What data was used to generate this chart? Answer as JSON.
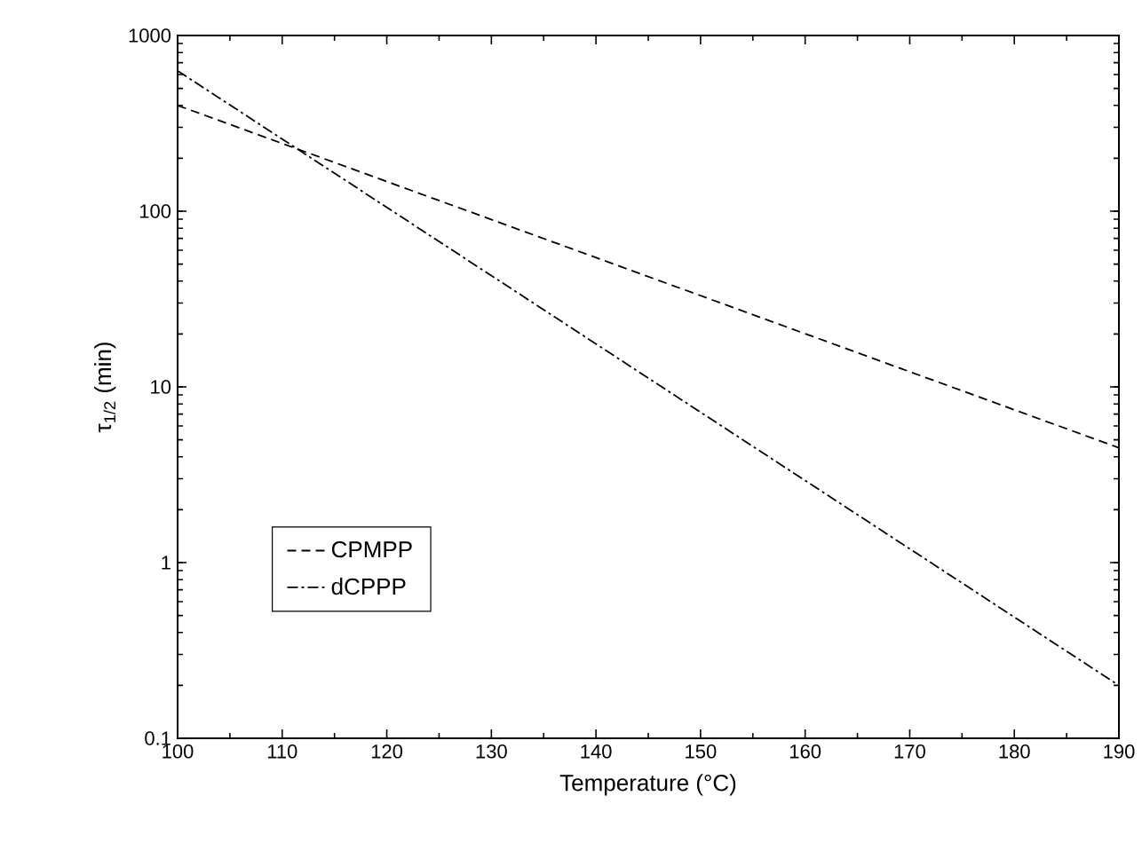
{
  "chart_data": {
    "type": "line",
    "xlabel": "Temperature (°C)",
    "ylabel": "τ$_{1/2}$ (min)",
    "log": "y",
    "grid": false,
    "legend": "bottom left",
    "marker": "none",
    "xlim": [
      100,
      190
    ],
    "xticks": [
      100,
      110,
      120,
      130,
      140,
      150,
      160,
      170,
      180,
      190
    ],
    "ylim": [
      0.1,
      1000
    ],
    "yticks": [
      0.1,
      1,
      10,
      100,
      1000
    ],
    "x": [
      100,
      190
    ],
    "series": [
      {
        "name": "CPMPP",
        "color": "#000000",
        "line_style": "dashed",
        "values": [
          400,
          4.5
        ]
      },
      {
        "name": "dCPPP",
        "color": "#000000",
        "line_style": "dashdot",
        "values": [
          630,
          0.2
        ]
      }
    ]
  }
}
